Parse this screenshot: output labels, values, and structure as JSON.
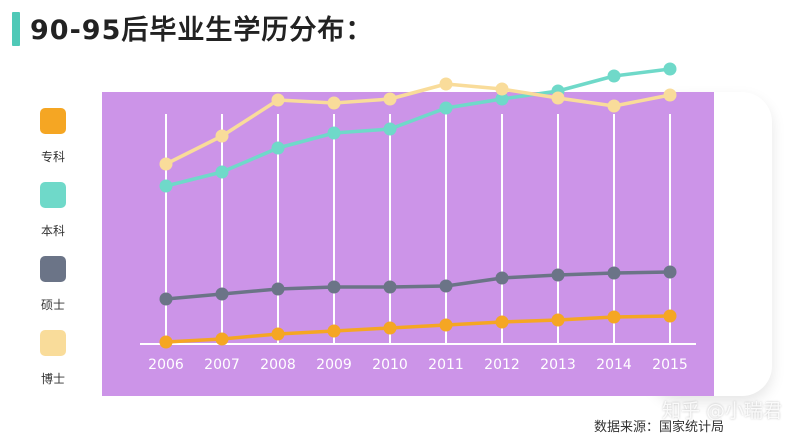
{
  "title": "90-95后毕业生学历分布：",
  "legend": [
    {
      "label": "专科",
      "color": "#f5a623"
    },
    {
      "label": "本科",
      "color": "#6fd9c9"
    },
    {
      "label": "硕士",
      "color": "#6b7487"
    },
    {
      "label": "博士",
      "color": "#f9dc9a"
    }
  ],
  "source": "数据来源：国家统计局",
  "watermark": "知乎 @小瑞君",
  "colors": {
    "accent_bar": "#4fc9b7",
    "plot_background": "#cc94e8",
    "grid": "#ffffff"
  },
  "chart_data": {
    "type": "line",
    "categories": [
      "2006",
      "2007",
      "2008",
      "2009",
      "2010",
      "2011",
      "2012",
      "2013",
      "2014",
      "2015"
    ],
    "series": [
      {
        "name": "专科",
        "color": "#f5a623",
        "values": [
          2,
          5,
          10,
          13,
          16,
          19,
          22,
          24,
          27,
          28
        ]
      },
      {
        "name": "本科",
        "color": "#6fd9c9",
        "values": [
          158,
          172,
          196,
          211,
          215,
          236,
          245,
          253,
          268,
          275
        ]
      },
      {
        "name": "博士",
        "color": "#f9dc9a",
        "values": [
          180,
          208,
          244,
          241,
          245,
          260,
          255,
          246,
          238,
          249
        ]
      },
      {
        "name": "硕士",
        "color": "#6b7487",
        "values": [
          45,
          50,
          55,
          57,
          57,
          58,
          66,
          69,
          71,
          72
        ]
      }
    ],
    "ylim": [
      0,
      310
    ],
    "xlabel": "",
    "ylabel": "",
    "grid": "vertical"
  }
}
